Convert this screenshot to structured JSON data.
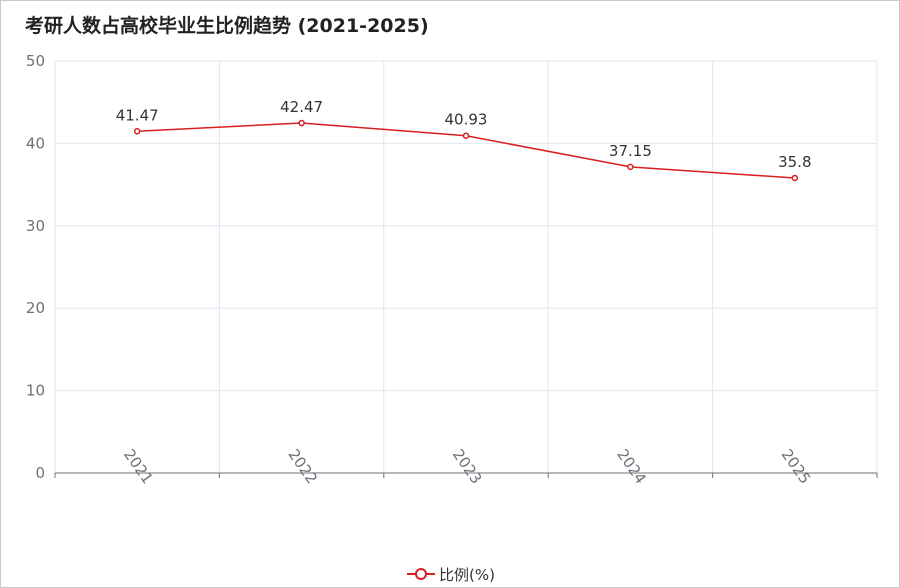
{
  "chart_data": {
    "type": "line",
    "title": "考研人数占高校毕业生比例趋势 (2021-2025)",
    "categories": [
      "2021",
      "2022",
      "2023",
      "2024",
      "2025"
    ],
    "series": [
      {
        "name": "比例(%)",
        "values": [
          41.47,
          42.47,
          40.93,
          37.15,
          35.8
        ],
        "color": "#d81e1e"
      }
    ],
    "y_ticks": [
      "0",
      "10",
      "20",
      "30",
      "40",
      "50"
    ],
    "ylim": [
      0,
      50
    ],
    "xlabel": "",
    "ylabel": "",
    "grid": true,
    "legend_position": "bottom-center",
    "colors": {
      "axis": "#6e7079",
      "grid": "#e0e6f1",
      "series": "#d81e1e"
    }
  }
}
